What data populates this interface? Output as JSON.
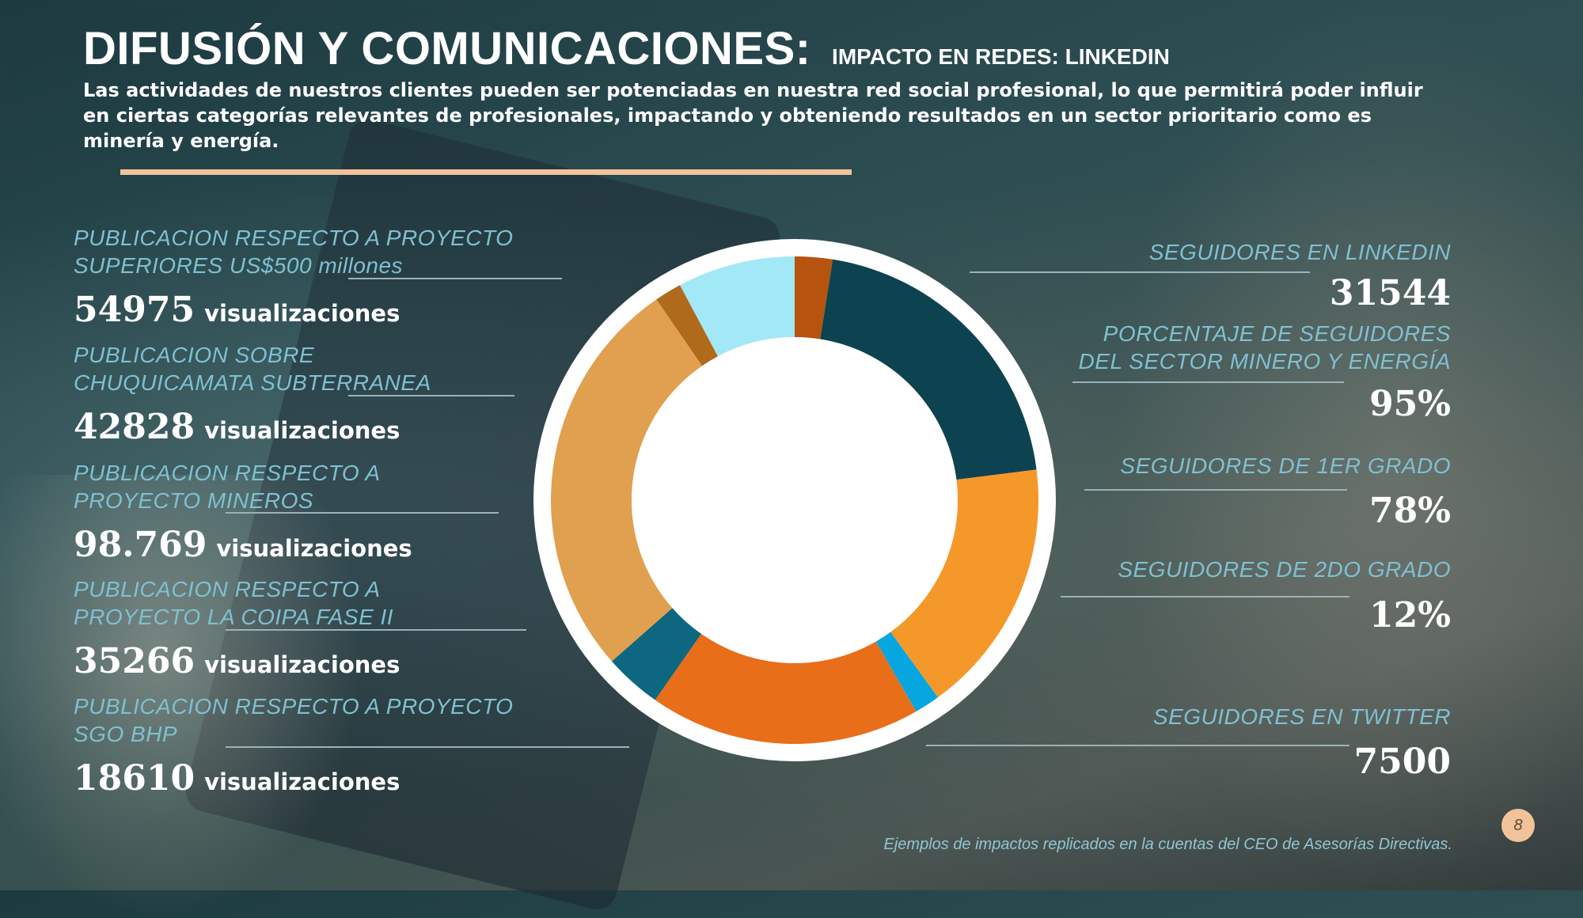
{
  "header": {
    "title": "DIFUSIÓN Y COMUNICACIONES:",
    "subtitle": "IMPACTO EN REDES: LINKEDIN",
    "intro": "Las actividades de nuestros clientes pueden ser potenciadas en nuestra red social profesional,  lo que permitirá poder influir en ciertas categorías relevantes de profesionales, impactando y obteniendo resultados en un sector prioritario como es minería y energía."
  },
  "left_stats": [
    {
      "label_1": "PUBLICACION RESPECTO A PROYECTO",
      "label_2": "SUPERIORES US$500 millones",
      "value": "54975",
      "unit": "visualizaciones"
    },
    {
      "label_1": "PUBLICACION SOBRE",
      "label_2": "CHUQUICAMATA SUBTERRANEA",
      "value": "42828",
      "unit": "visualizaciones"
    },
    {
      "label_1": "PUBLICACION RESPECTO A",
      "label_2": "PROYECTO MINEROS",
      "value": "98.769",
      "unit": "visualizaciones"
    },
    {
      "label_1": "PUBLICACION RESPECTO A",
      "label_2": "PROYECTO LA COIPA FASE II",
      "value": "35266",
      "unit": "visualizaciones"
    },
    {
      "label_1": "PUBLICACION RESPECTO A PROYECTO",
      "label_2": "SGO BHP",
      "value": "18610",
      "unit": "visualizaciones"
    }
  ],
  "right_stats": [
    {
      "label_1": "SEGUIDORES EN LINKEDIN",
      "label_2": "",
      "value": "31544"
    },
    {
      "label_1": "PORCENTAJE DE SEGUIDORES",
      "label_2": "DEL SECTOR MINERO Y ENERGÍA",
      "value": "95%"
    },
    {
      "label_1": "SEGUIDORES DE 1ER GRADO",
      "label_2": "",
      "value": "78%"
    },
    {
      "label_1": "SEGUIDORES DE 2DO GRADO",
      "label_2": "",
      "value": "12%"
    },
    {
      "label_1": "SEGUIDORES EN TWITTER",
      "label_2": "",
      "value": "7500"
    }
  ],
  "footnote": "Ejemplos de impactos replicados en la cuentas del CEO de Asesorías Directivas.",
  "page_number": "8",
  "colors": {
    "accent_rule": "#f2c39a",
    "label_text": "#7fc0d1",
    "value_text": "#ffffff"
  },
  "chart_data": {
    "type": "pie",
    "style": "donut",
    "values": [
      2.5,
      20.5,
      17.0,
      1.7,
      18.0,
      3.8,
      26.9,
      1.8,
      7.8
    ],
    "colors": [
      "#b5530f",
      "#0d4350",
      "#f5982a",
      "#08a6e0",
      "#e86e19",
      "#0e6780",
      "#e0a050",
      "#b06a1c",
      "#a3e8f7"
    ],
    "start_angle_deg": 0,
    "legend": "none"
  }
}
